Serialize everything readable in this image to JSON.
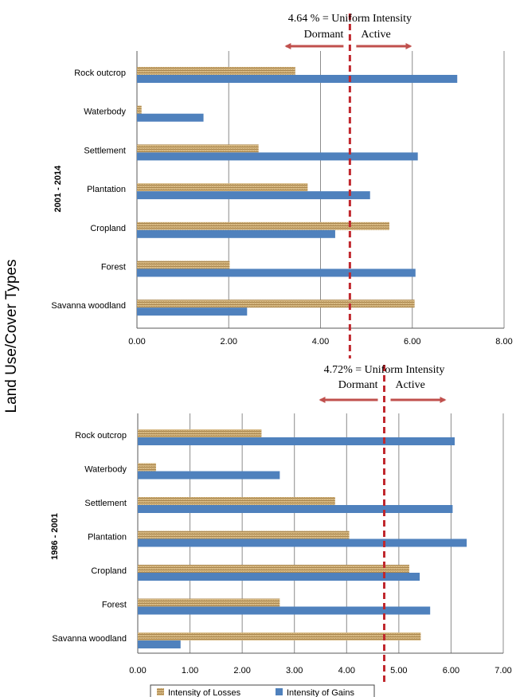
{
  "colors": {
    "gains": "#4f81bd",
    "losses": "#c9a56a",
    "grid": "#8c8c8c",
    "uniform_line": "#c0282e",
    "arrow": "#c0504d"
  },
  "shared_ylabel": "Land Use/Cover Types",
  "legend": {
    "losses": "Intensity of Losses",
    "gains": "Intensity of Gains"
  },
  "chart_data": [
    {
      "type": "bar",
      "orientation": "horizontal",
      "period_label": "2001 - 2014",
      "categories": [
        "Rock outcrop",
        "Waterbody",
        "Settlement",
        "Plantation",
        "Cropland",
        "Forest",
        "Savanna woodland"
      ],
      "series": [
        {
          "name": "Intensity of Losses",
          "values": [
            3.45,
            0.1,
            2.65,
            3.72,
            5.5,
            2.02,
            6.05
          ]
        },
        {
          "name": "Intensity of Gains",
          "values": [
            6.98,
            1.45,
            6.12,
            5.08,
            4.32,
            6.07,
            2.4
          ]
        }
      ],
      "xlim": [
        0,
        8
      ],
      "xticks": [
        "0.00",
        "2.00",
        "4.00",
        "6.00",
        "8.00"
      ],
      "uniform_intensity": 4.64,
      "annotation": {
        "text": "4.64 % = Uniform Intensity",
        "dormant": "Dormant",
        "active": "Active"
      },
      "grid": true,
      "legend_position": "bottom"
    },
    {
      "type": "bar",
      "orientation": "horizontal",
      "period_label": "1986 - 2001",
      "categories": [
        "Rock outcrop",
        "Waterbody",
        "Settlement",
        "Plantation",
        "Cropland",
        "Forest",
        "Savanna woodland"
      ],
      "series": [
        {
          "name": "Intensity of Losses",
          "values": [
            2.37,
            0.35,
            3.78,
            4.05,
            5.2,
            2.72,
            5.42
          ]
        },
        {
          "name": "Intensity of Gains",
          "values": [
            6.07,
            2.72,
            6.03,
            6.3,
            5.4,
            5.6,
            0.82
          ]
        }
      ],
      "xlim": [
        0,
        7
      ],
      "xticks": [
        "0.00",
        "1.00",
        "2.00",
        "3.00",
        "4.00",
        "5.00",
        "6.00",
        "7.00"
      ],
      "uniform_intensity": 4.72,
      "annotation": {
        "text": "4.72%  =  Uniform Intensity",
        "dormant": "Dormant",
        "active": "Active"
      },
      "grid": true,
      "legend_position": "bottom"
    }
  ]
}
